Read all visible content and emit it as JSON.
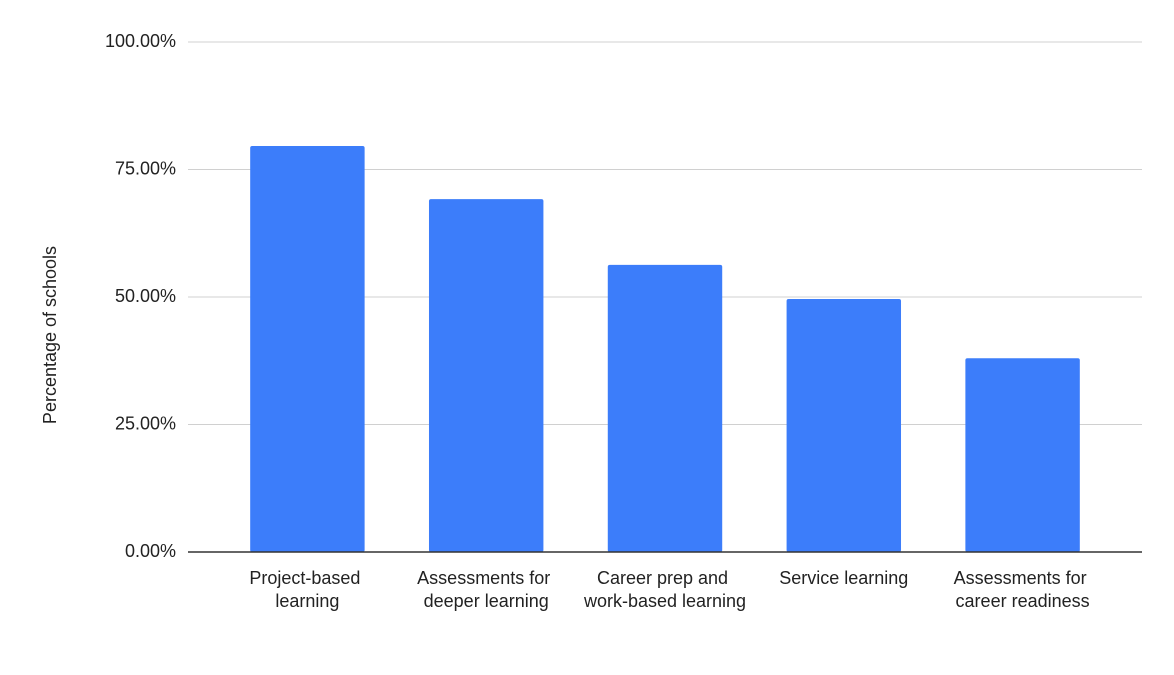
{
  "chart_data": {
    "type": "bar",
    "y_label": "Percentage of schools",
    "categories": [
      "Project-based learning",
      "Assessments for deeper learning",
      "Career prep and work-based learning",
      "Service learning",
      "Assessments for career readiness"
    ],
    "values": [
      79.6,
      69.2,
      56.3,
      49.6,
      38
    ],
    "color": "#3c7dfa",
    "ylim": [
      0,
      100
    ],
    "yticks": [
      {
        "value": 0,
        "label": "0.00%"
      },
      {
        "value": 25,
        "label": "25.00%"
      },
      {
        "value": 50,
        "label": "50.00%"
      },
      {
        "value": 75,
        "label": "75.00%"
      },
      {
        "value": 100,
        "label": "100.00%"
      }
    ],
    "grid": true
  }
}
